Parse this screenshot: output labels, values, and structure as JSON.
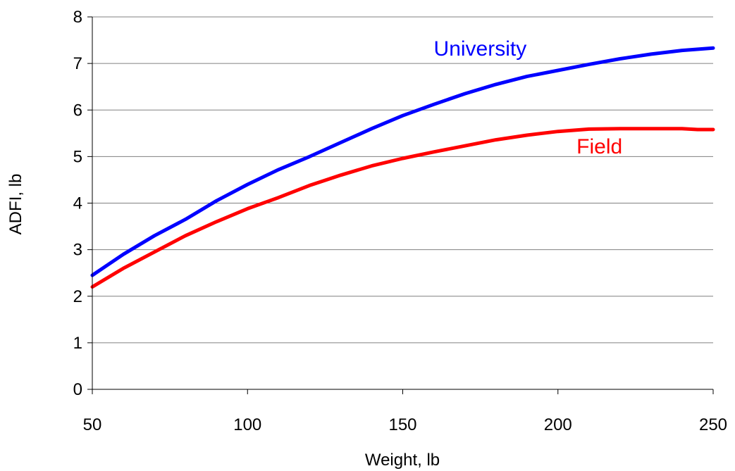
{
  "chart_data": {
    "type": "line",
    "xlabel": "Weight, lb",
    "ylabel": "ADFI, lb",
    "xlim": [
      50,
      250
    ],
    "ylim": [
      0,
      8
    ],
    "x_ticks": [
      "50",
      "100",
      "150",
      "200",
      "250"
    ],
    "y_ticks": [
      "0",
      "1",
      "2",
      "3",
      "4",
      "5",
      "6",
      "7",
      "8"
    ],
    "grid": "horizontal",
    "legend": "none",
    "series": [
      {
        "name": "University",
        "color": "#0000ff",
        "x": [
          50,
          60,
          70,
          80,
          90,
          100,
          110,
          120,
          130,
          140,
          150,
          160,
          170,
          180,
          190,
          200,
          210,
          220,
          230,
          240,
          250
        ],
        "y": [
          2.45,
          2.9,
          3.3,
          3.65,
          4.05,
          4.4,
          4.72,
          5.0,
          5.3,
          5.6,
          5.88,
          6.12,
          6.35,
          6.55,
          6.72,
          6.85,
          6.98,
          7.1,
          7.2,
          7.28,
          7.33
        ]
      },
      {
        "name": "Field",
        "color": "#ff0000",
        "x": [
          50,
          60,
          70,
          80,
          90,
          100,
          110,
          120,
          130,
          140,
          150,
          160,
          170,
          180,
          190,
          200,
          210,
          220,
          230,
          240,
          245,
          250
        ],
        "y": [
          2.2,
          2.6,
          2.95,
          3.3,
          3.6,
          3.88,
          4.12,
          4.38,
          4.6,
          4.8,
          4.96,
          5.1,
          5.23,
          5.36,
          5.46,
          5.54,
          5.59,
          5.6,
          5.6,
          5.6,
          5.58,
          5.58
        ]
      }
    ],
    "annotations": [
      {
        "text": "University",
        "color": "#0000ff",
        "x": 160,
        "y": 7.35
      },
      {
        "text": "Field",
        "color": "#ff0000",
        "x": 206,
        "y": 5.25
      }
    ]
  }
}
